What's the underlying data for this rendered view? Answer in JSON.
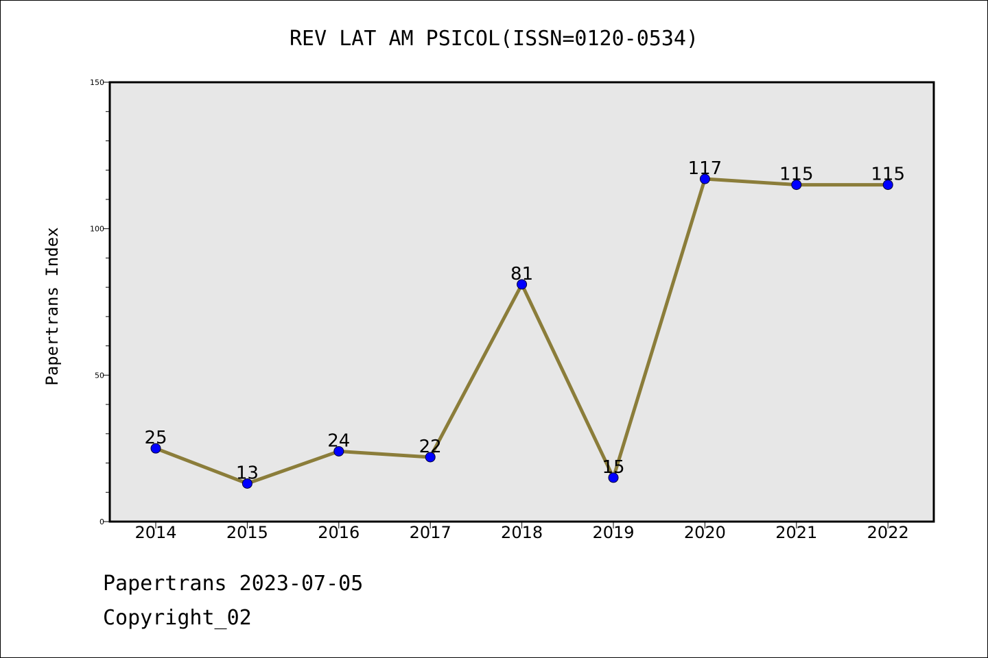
{
  "chart_data": {
    "type": "line",
    "title": "REV LAT AM PSICOL(ISSN=0120-0534)",
    "xlabel": "",
    "ylabel": "Papertrans Index",
    "categories": [
      "2014",
      "2015",
      "2016",
      "2017",
      "2018",
      "2019",
      "2020",
      "2021",
      "2022"
    ],
    "series": [
      {
        "values": [
          25,
          13,
          24,
          22,
          81,
          15,
          117,
          115,
          115
        ],
        "data_labels": [
          "25",
          "13",
          "24",
          "22",
          "81",
          "15",
          "117",
          "115",
          "115"
        ]
      }
    ],
    "ylim": [
      0,
      150
    ],
    "yticks": [
      "0",
      "50",
      "100",
      "150"
    ],
    "grid": false,
    "colors": {
      "line": "#8b7d3a",
      "marker": "#0000ff",
      "plot_background": "#e7e7e7"
    }
  },
  "footer": {
    "line1": "Papertrans 2023-07-05",
    "line2": "Copyright_02"
  }
}
